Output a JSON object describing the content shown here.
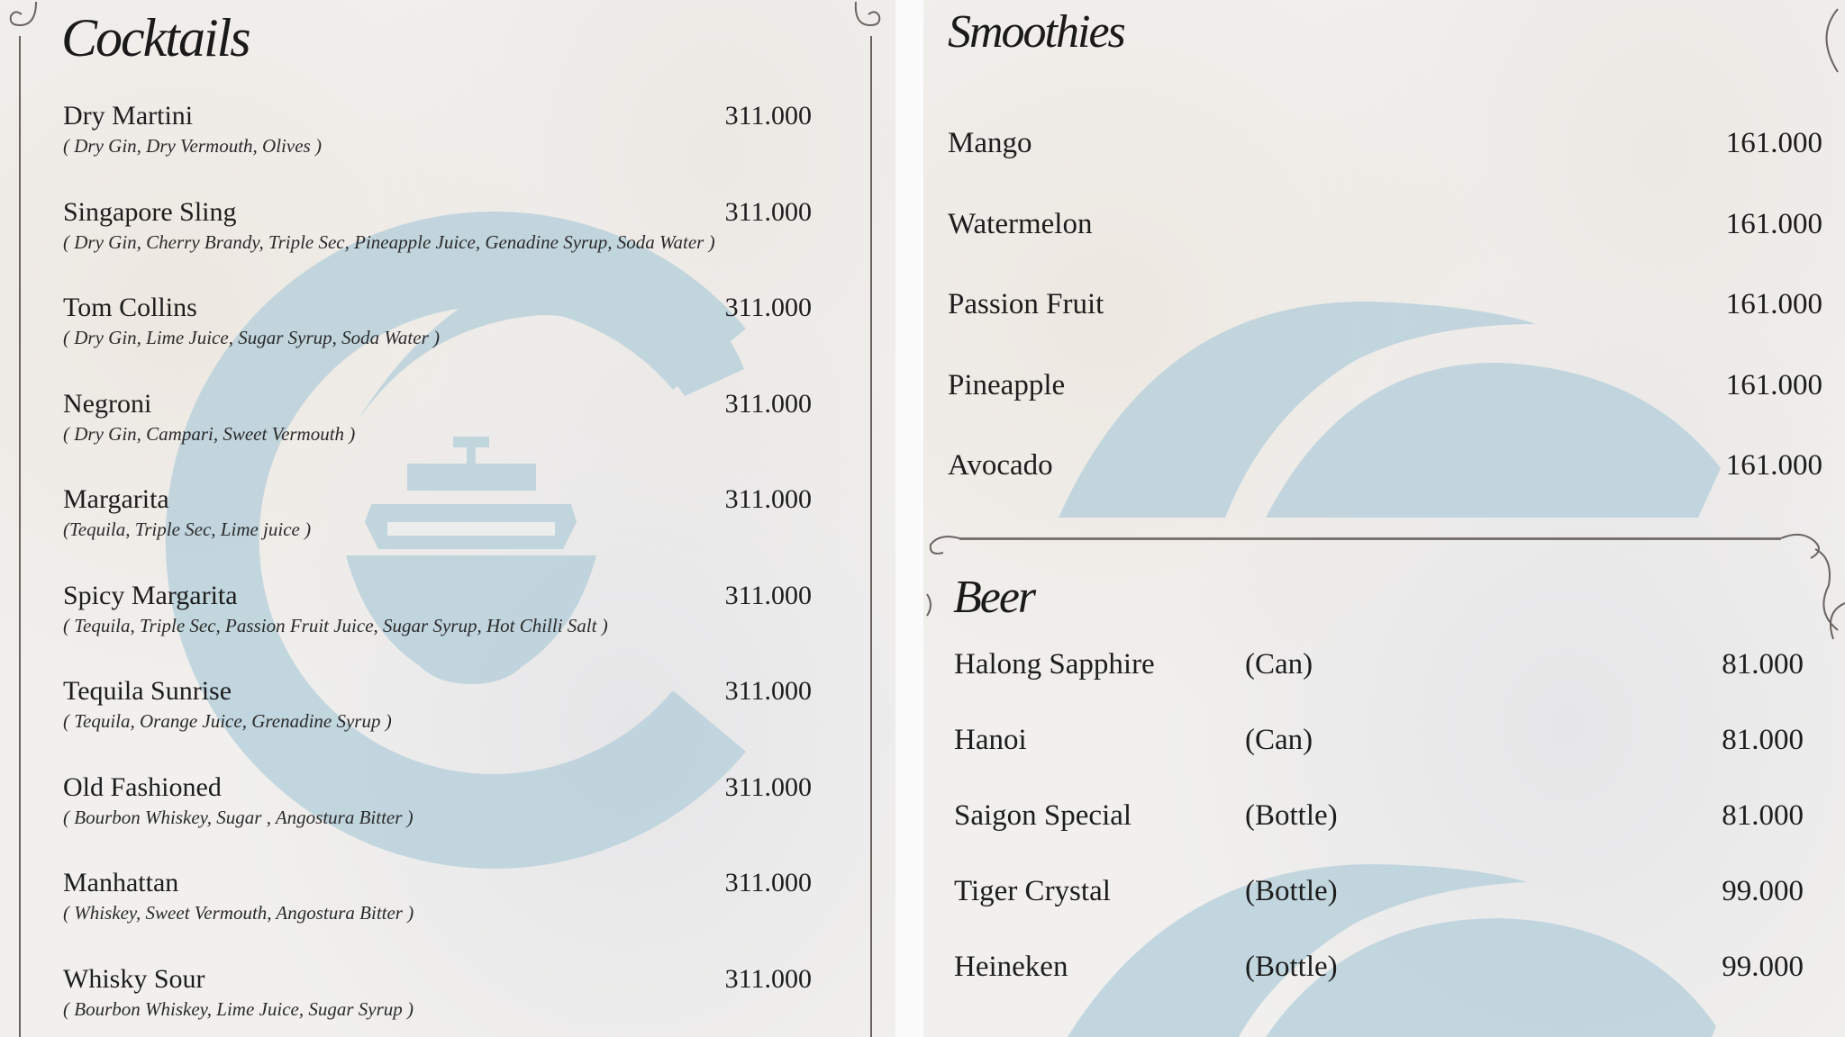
{
  "colors": {
    "watermark": "#b7d0db",
    "text": "#1d1d1d",
    "border": "#6b6360"
  },
  "cocktails": {
    "title": "Cocktails",
    "items": [
      {
        "name": "Dry Martini",
        "desc": "( Dry Gin, Dry Vermouth, Olives )",
        "price": "311.000"
      },
      {
        "name": "Singapore Sling",
        "desc": "( Dry Gin, Cherry Brandy, Triple Sec, Pineapple Juice, Genadine Syrup, Soda Water )",
        "price": "311.000"
      },
      {
        "name": "Tom Collins",
        "desc": "( Dry Gin, Lime Juice, Sugar Syrup, Soda Water )",
        "price": "311.000"
      },
      {
        "name": "Negroni",
        "desc": "( Dry Gin, Campari, Sweet Vermouth )",
        "price": "311.000"
      },
      {
        "name": "Margarita",
        "desc": "(Tequila, Triple Sec, Lime juice )",
        "price": "311.000"
      },
      {
        "name": "Spicy Margarita",
        "desc": "( Tequila, Triple Sec, Passion Fruit Juice, Sugar Syrup, Hot Chilli Salt )",
        "price": "311.000"
      },
      {
        "name": "Tequila Sunrise",
        "desc": "( Tequila, Orange Juice, Grenadine Syrup )",
        "price": "311.000"
      },
      {
        "name": "Old Fashioned",
        "desc": "( Bourbon Whiskey, Sugar , Angostura Bitter )",
        "price": "311.000"
      },
      {
        "name": "Manhattan",
        "desc": "( Whiskey, Sweet Vermouth, Angostura Bitter )",
        "price": "311.000"
      },
      {
        "name": "Whisky Sour",
        "desc": "( Bourbon Whiskey, Lime Juice, Sugar Syrup )",
        "price": "311.000"
      }
    ]
  },
  "smoothies": {
    "title": "Smoothies",
    "items": [
      {
        "name": "Mango",
        "price": "161.000"
      },
      {
        "name": "Watermelon",
        "price": "161.000"
      },
      {
        "name": "Passion Fruit",
        "price": "161.000"
      },
      {
        "name": "Pineapple",
        "price": "161.000"
      },
      {
        "name": "Avocado",
        "price": "161.000"
      }
    ]
  },
  "beer": {
    "title": "Beer",
    "items": [
      {
        "name": "Halong Sapphire",
        "type": "(Can)",
        "price": "81.000"
      },
      {
        "name": "Hanoi",
        "type": "(Can)",
        "price": "81.000"
      },
      {
        "name": "Saigon Special",
        "type": "(Bottle)",
        "price": "81.000"
      },
      {
        "name": "Tiger Crystal",
        "type": "(Bottle)",
        "price": "99.000"
      },
      {
        "name": "Heineken",
        "type": "(Bottle)",
        "price": "99.000"
      }
    ]
  }
}
